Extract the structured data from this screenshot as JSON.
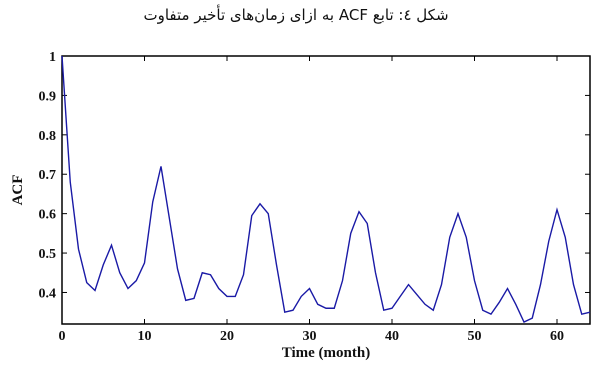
{
  "caption": "شکل ٤: تابع ACF به ازای زمان‌های تأخیر متفاوت",
  "chart_data": {
    "type": "line",
    "xlabel": "Time (month)",
    "ylabel": "ACF",
    "xlim": [
      0,
      64
    ],
    "ylim": [
      0.32,
      1.0
    ],
    "xticks": [
      0,
      10,
      20,
      30,
      40,
      50,
      60
    ],
    "yticks": [
      0.4,
      0.5,
      0.6,
      0.7,
      0.8,
      0.9,
      1
    ],
    "ytick_labels": [
      "0.4",
      "0.5",
      "0.6",
      "0.7",
      "0.8",
      "0.9",
      "1"
    ],
    "grid": false,
    "series": [
      {
        "color": "#1a1aa6",
        "x": [
          0,
          1,
          2,
          3,
          4,
          5,
          6,
          7,
          8,
          9,
          10,
          11,
          12,
          13,
          14,
          15,
          16,
          17,
          18,
          19,
          20,
          21,
          22,
          23,
          24,
          25,
          26,
          27,
          28,
          29,
          30,
          31,
          32,
          33,
          34,
          35,
          36,
          37,
          38,
          39,
          40,
          41,
          42,
          43,
          44,
          45,
          46,
          47,
          48,
          49,
          50,
          51,
          52,
          53,
          54,
          55,
          56,
          57,
          58,
          59,
          60,
          61,
          62,
          63,
          64
        ],
        "y": [
          1.0,
          0.68,
          0.51,
          0.425,
          0.405,
          0.47,
          0.52,
          0.45,
          0.41,
          0.43,
          0.475,
          0.63,
          0.72,
          0.59,
          0.46,
          0.38,
          0.385,
          0.45,
          0.445,
          0.41,
          0.39,
          0.39,
          0.445,
          0.595,
          0.625,
          0.6,
          0.47,
          0.35,
          0.355,
          0.39,
          0.41,
          0.37,
          0.36,
          0.36,
          0.43,
          0.55,
          0.605,
          0.575,
          0.45,
          0.355,
          0.36,
          0.39,
          0.42,
          0.395,
          0.37,
          0.355,
          0.42,
          0.54,
          0.6,
          0.54,
          0.43,
          0.355,
          0.345,
          0.375,
          0.41,
          0.37,
          0.325,
          0.335,
          0.42,
          0.53,
          0.61,
          0.54,
          0.42,
          0.345,
          0.35
        ]
      }
    ]
  }
}
